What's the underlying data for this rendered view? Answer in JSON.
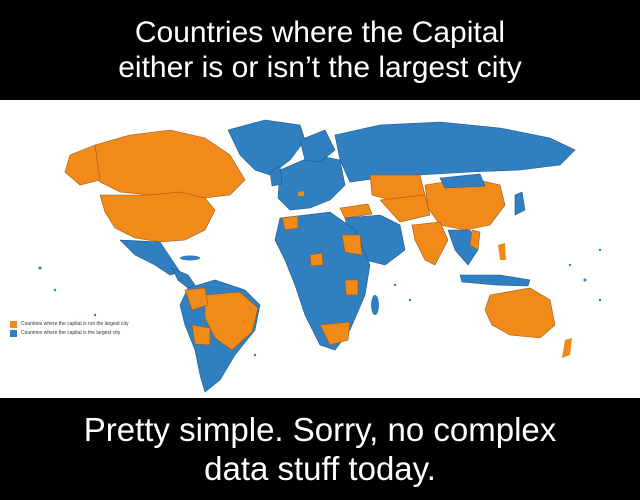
{
  "header": {
    "line1": "Countries where the Capital",
    "line2": "either is or isn’t the largest city"
  },
  "legend": {
    "items": [
      {
        "label": "Countries where the capital is not the largest city",
        "color": "#f28a1a"
      },
      {
        "label": "Countries where the capital is the largest city",
        "color": "#2f7fc1"
      }
    ]
  },
  "footer": {
    "line1": "Pretty simple. Sorry, no complex",
    "line2": "data stuff today."
  }
}
